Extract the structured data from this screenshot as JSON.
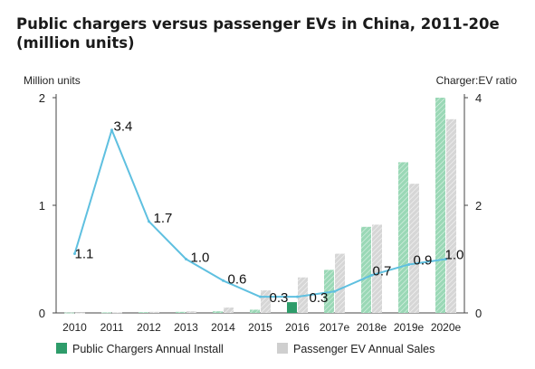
{
  "title": "Public chargers versus passenger EVs in China, 2011-20e (million units)",
  "left_axis_unit": "Million units",
  "right_axis_unit": "Charger:EV ratio",
  "colors": {
    "chargers": "#8fd1ad",
    "chargers_dark": "#2e9c6a",
    "evs": "#cfcfcf",
    "ratio_line": "#5fc0e0"
  },
  "chart_data": {
    "type": "bar",
    "categories": [
      "2010",
      "2011",
      "2012",
      "2013",
      "2014",
      "2015",
      "2016",
      "2017e",
      "2018e",
      "2019e",
      "2020e"
    ],
    "ylim": [
      0,
      2
    ],
    "y_ticks": [
      "0",
      "1",
      "2"
    ],
    "y2lim": [
      0,
      4
    ],
    "y2_ticks": [
      "0",
      "2",
      "4"
    ],
    "series": [
      {
        "name": "Public Chargers Annual Install",
        "kind": "bar",
        "values": [
          0.003,
          0.005,
          0.007,
          0.01,
          0.015,
          0.03,
          0.1,
          0.4,
          0.8,
          1.4,
          2.0
        ]
      },
      {
        "name": "Passenger EV Annual Sales",
        "kind": "bar",
        "values": [
          0.002,
          0.005,
          0.01,
          0.015,
          0.05,
          0.21,
          0.33,
          0.55,
          0.82,
          1.2,
          1.8
        ]
      },
      {
        "name": "",
        "kind": "line",
        "axis": "right",
        "x": [
          "2010",
          "2011",
          "2012",
          "2013",
          "2014",
          "2015",
          "2016",
          "2017e",
          "2018e",
          "2019e",
          "2020e"
        ],
        "values": [
          1.1,
          3.4,
          1.7,
          1.0,
          0.6,
          0.3,
          0.3,
          0.4,
          0.7,
          0.9,
          1.0
        ],
        "labels": [
          "1.1",
          "3.4",
          "1.7",
          "1.0",
          "0.6",
          "0.3",
          "0.3",
          "",
          "0.7",
          "0.9",
          "1.0"
        ]
      }
    ],
    "legend": "bottom",
    "grid": false
  }
}
